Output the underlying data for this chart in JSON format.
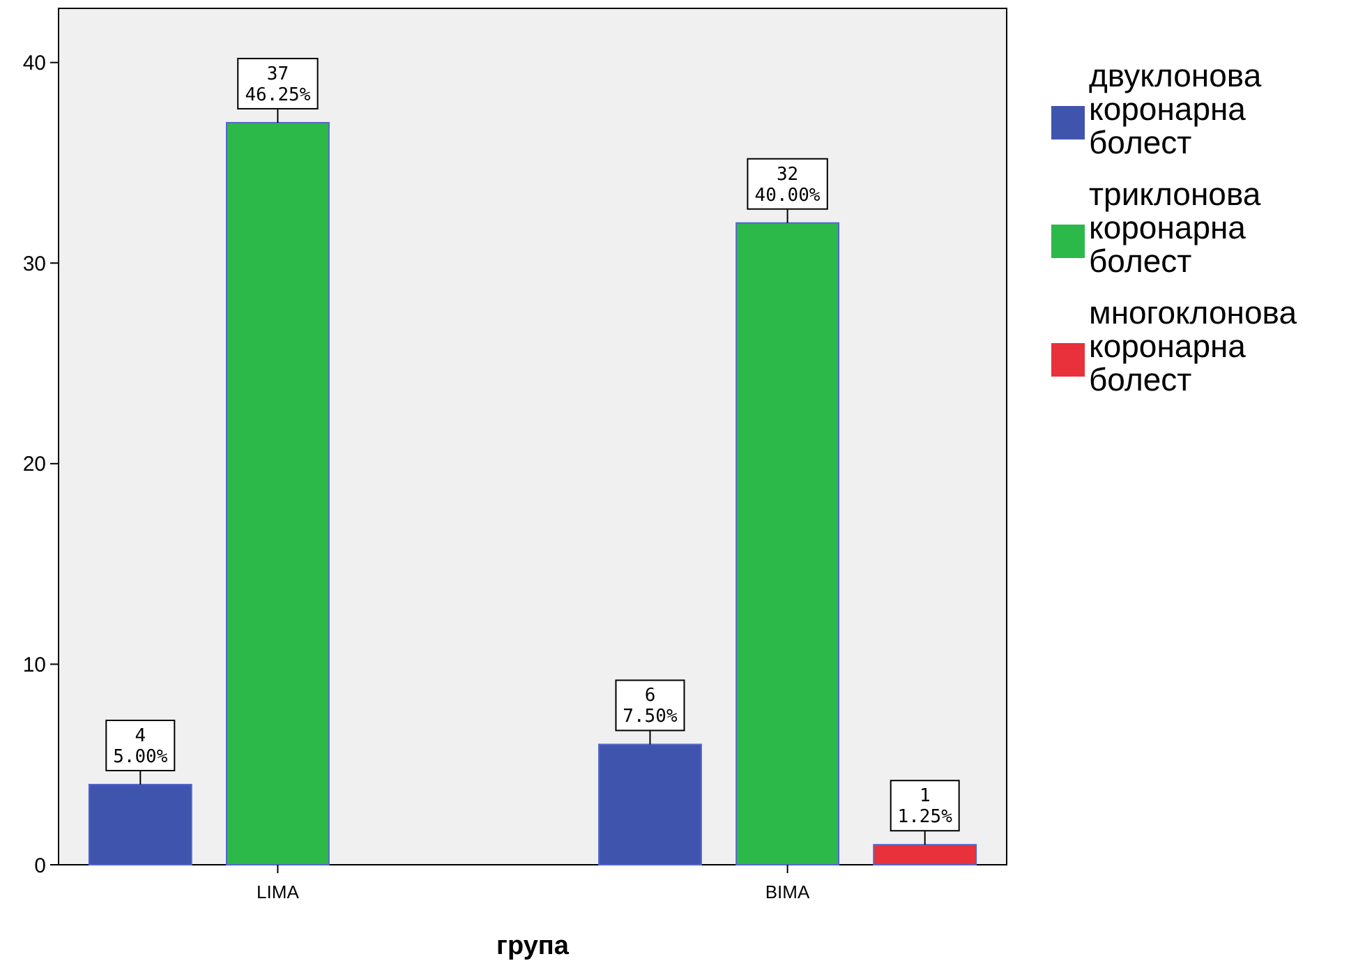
{
  "chart_data": {
    "type": "bar",
    "xlabel": "група",
    "categories": [
      "LIMA",
      "BIMA"
    ],
    "ylim": [
      0,
      42.7
    ],
    "yticks": [
      0,
      10,
      20,
      30,
      40
    ],
    "grid": false,
    "legend": "top right",
    "series": [
      {
        "name": "двуклонова коронарна болест",
        "color": "#3f54ac",
        "values": [
          4,
          6
        ],
        "value_labels": [
          "4\n5.00%",
          "6\n7.50%"
        ]
      },
      {
        "name": "триклонова коронарна болест",
        "color": "#2db84a",
        "values": [
          37,
          32
        ],
        "value_labels": [
          "37\n46.25%",
          "32\n40.00%"
        ]
      },
      {
        "name": "многоклонова коронарна болест",
        "color": "#e8313b",
        "values": [
          null,
          1
        ],
        "value_labels": [
          null,
          "1\n1.25%"
        ]
      }
    ]
  }
}
